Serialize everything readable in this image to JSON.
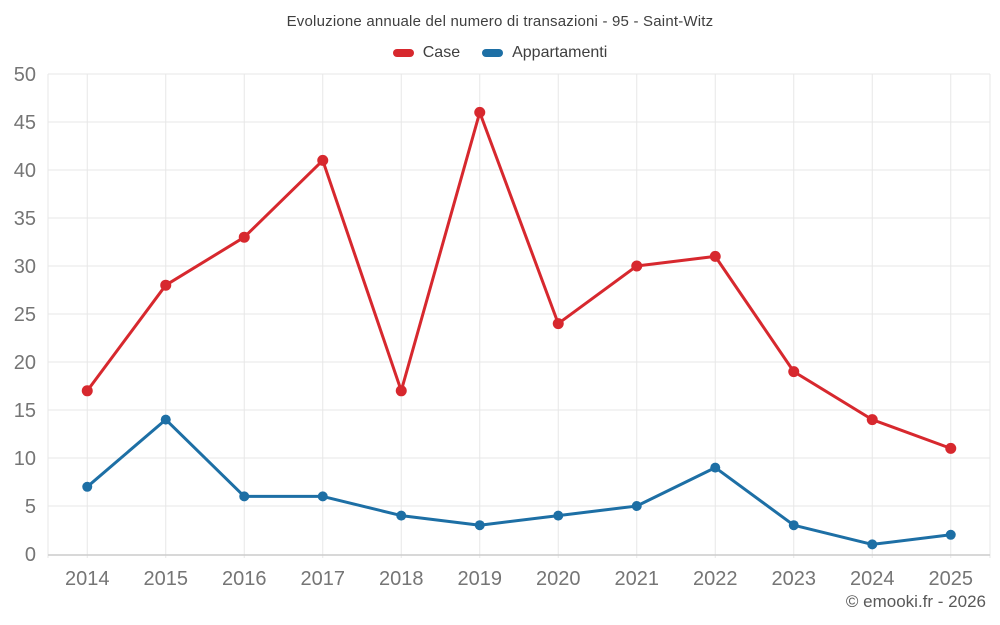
{
  "header": {
    "title": "Evoluzione annuale del numero di transazioni - 95 - Saint-Witz"
  },
  "chart_data": {
    "type": "line",
    "title": "Evoluzione annuale del numero di transazioni - 95 - Saint-Witz",
    "categories": [
      "2014",
      "2015",
      "2016",
      "2017",
      "2018",
      "2019",
      "2020",
      "2021",
      "2022",
      "2023",
      "2024",
      "2025"
    ],
    "series": [
      {
        "name": "Case",
        "color": "#d7282e",
        "marker_radius": 5.5,
        "values": [
          17,
          28,
          33,
          41,
          17,
          46,
          24,
          30,
          31,
          19,
          14,
          11
        ]
      },
      {
        "name": "Appartamenti",
        "color": "#1d6fa5",
        "marker_radius": 5,
        "values": [
          7,
          14,
          6,
          6,
          4,
          3,
          4,
          5,
          9,
          3,
          1,
          2
        ]
      }
    ],
    "xlabel": "",
    "ylabel": "",
    "ylim": [
      0,
      50
    ],
    "ytick_step": 5,
    "yticks": [
      0,
      5,
      10,
      15,
      20,
      25,
      30,
      35,
      40,
      45,
      50
    ],
    "grid": true,
    "legend_position": "top"
  },
  "footer": {
    "credit": "© emooki.fr - 2026"
  },
  "colors": {
    "background": "#ffffff",
    "grid": "#e7e7e7",
    "axis_line": "#cccccc",
    "tick_label": "#757575",
    "title_text": "#3f3f3f",
    "legend_text": "#3f3f3f",
    "footer_text": "#595959"
  }
}
